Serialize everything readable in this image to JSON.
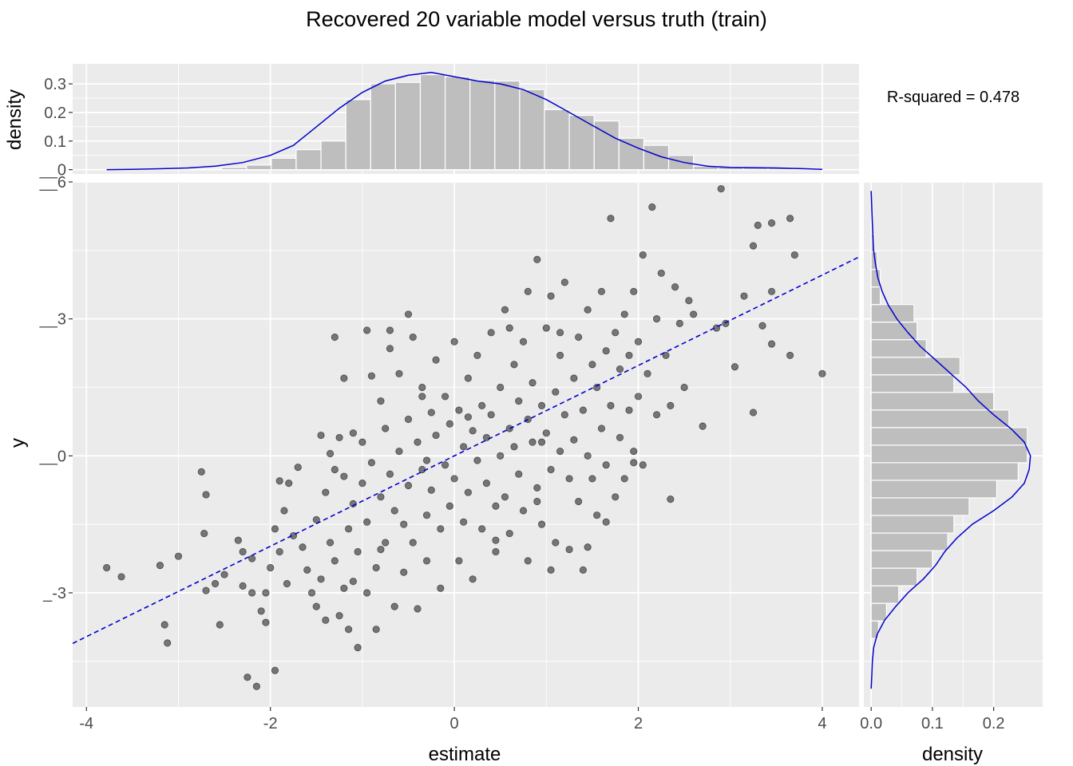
{
  "chart_data": {
    "type": "scatter",
    "title": "Recovered 20 variable model versus truth (train)",
    "annotation": "R-squared =  0.478",
    "colors": {
      "panel": "#ebebeb",
      "grid": "#ffffff",
      "point": "#000000",
      "fit_line": "#0000cc",
      "density_curve": "#0000cc",
      "hist_fill": "#bebebe",
      "hist_edge": "#ffffff"
    },
    "main": {
      "xlabel": "estimate",
      "ylabel": "y",
      "xlim": [
        -4.15,
        4.4
      ],
      "ylim": [
        -5.5,
        6.0
      ],
      "x_ticks": [
        -4,
        -2,
        0,
        2,
        4
      ],
      "x_tick_labels": [
        "-4",
        "-2",
        "0",
        "2",
        "4"
      ],
      "y_ticks": [
        -3,
        0,
        3,
        6
      ],
      "y_tick_labels": [
        "_-3",
        "__0",
        "__3",
        "__6"
      ],
      "fit_line": {
        "slope": 0.99,
        "intercept": 0.0,
        "x_range": [
          -4.15,
          4.4
        ],
        "style": "dashed"
      },
      "point_opacity": 0.5,
      "points": [
        [
          -3.78,
          -2.45
        ],
        [
          -3.62,
          -2.65
        ],
        [
          -3.2,
          -2.4
        ],
        [
          -3.15,
          -3.7
        ],
        [
          -3.12,
          -4.1
        ],
        [
          -3.0,
          -2.2
        ],
        [
          -2.75,
          -0.35
        ],
        [
          -2.72,
          -1.7
        ],
        [
          -2.7,
          -0.85
        ],
        [
          -2.7,
          -2.95
        ],
        [
          -2.6,
          -2.8
        ],
        [
          -2.55,
          -3.7
        ],
        [
          -2.5,
          -2.6
        ],
        [
          -2.35,
          -1.85
        ],
        [
          -2.3,
          -2.1
        ],
        [
          -2.3,
          -2.85
        ],
        [
          -2.25,
          -4.85
        ],
        [
          -2.2,
          -3.0
        ],
        [
          -2.15,
          -5.05
        ],
        [
          -2.2,
          -2.25
        ],
        [
          -2.05,
          -3.0
        ],
        [
          -2.1,
          -3.4
        ],
        [
          -2.05,
          -3.65
        ],
        [
          -2.0,
          -2.45
        ],
        [
          -1.95,
          -1.6
        ],
        [
          -1.95,
          -4.7
        ],
        [
          -1.9,
          -2.1
        ],
        [
          -1.9,
          -0.55
        ],
        [
          -1.85,
          -1.2
        ],
        [
          -1.82,
          -2.8
        ],
        [
          -1.8,
          -0.6
        ],
        [
          -1.75,
          -1.75
        ],
        [
          -1.7,
          -0.25
        ],
        [
          -1.65,
          -2.0
        ],
        [
          -1.6,
          -2.5
        ],
        [
          -1.55,
          -3.0
        ],
        [
          -1.5,
          -1.4
        ],
        [
          -1.5,
          -3.3
        ],
        [
          -1.45,
          0.45
        ],
        [
          -1.45,
          -2.7
        ],
        [
          -1.4,
          -0.8
        ],
        [
          -1.4,
          -3.6
        ],
        [
          -1.35,
          0.05
        ],
        [
          -1.35,
          -1.9
        ],
        [
          -1.3,
          -0.3
        ],
        [
          -1.3,
          -2.3
        ],
        [
          -1.25,
          0.4
        ],
        [
          -1.25,
          -3.5
        ],
        [
          -1.2,
          -0.45
        ],
        [
          -1.2,
          -2.9
        ],
        [
          -1.15,
          -1.6
        ],
        [
          -1.15,
          -3.8
        ],
        [
          -1.1,
          0.5
        ],
        [
          -1.1,
          -1.05
        ],
        [
          -1.05,
          -2.1
        ],
        [
          -1.05,
          -4.2
        ],
        [
          -1.0,
          0.3
        ],
        [
          -1.0,
          -0.6
        ],
        [
          -0.95,
          -1.45
        ],
        [
          -0.95,
          -3.0
        ],
        [
          -0.9,
          1.75
        ],
        [
          -0.9,
          -0.15
        ],
        [
          -0.85,
          -2.45
        ],
        [
          -0.85,
          -3.8
        ],
        [
          -0.8,
          1.2
        ],
        [
          -0.8,
          -0.9
        ],
        [
          -0.75,
          0.6
        ],
        [
          -0.75,
          -1.9
        ],
        [
          -0.7,
          2.75
        ],
        [
          -0.7,
          -0.4
        ],
        [
          -0.65,
          -1.2
        ],
        [
          -0.65,
          -3.3
        ],
        [
          -0.6,
          1.8
        ],
        [
          -0.6,
          0.1
        ],
        [
          -0.55,
          -1.5
        ],
        [
          -0.55,
          -2.55
        ],
        [
          -0.5,
          0.8
        ],
        [
          -0.5,
          -0.65
        ],
        [
          -0.45,
          2.6
        ],
        [
          -0.45,
          -1.9
        ],
        [
          -0.4,
          0.3
        ],
        [
          -0.4,
          -3.35
        ],
        [
          -0.35,
          1.5
        ],
        [
          -0.35,
          -0.3
        ],
        [
          -0.3,
          -1.3
        ],
        [
          -0.3,
          -2.3
        ],
        [
          -0.25,
          0.95
        ],
        [
          -0.25,
          -0.75
        ],
        [
          -0.2,
          2.1
        ],
        [
          -0.2,
          0.45
        ],
        [
          -0.15,
          -1.6
        ],
        [
          -0.15,
          -2.9
        ],
        [
          -0.1,
          1.3
        ],
        [
          -0.1,
          -0.2
        ],
        [
          -0.05,
          0.7
        ],
        [
          -0.05,
          -1.1
        ],
        [
          0.0,
          2.5
        ],
        [
          0.0,
          -0.5
        ],
        [
          0.05,
          1.0
        ],
        [
          0.05,
          -2.3
        ],
        [
          0.1,
          0.2
        ],
        [
          0.1,
          -1.45
        ],
        [
          0.15,
          1.7
        ],
        [
          0.15,
          -0.8
        ],
        [
          0.2,
          0.55
        ],
        [
          0.2,
          -2.7
        ],
        [
          0.25,
          2.2
        ],
        [
          0.25,
          -0.1
        ],
        [
          0.3,
          1.1
        ],
        [
          0.3,
          -1.6
        ],
        [
          0.35,
          0.4
        ],
        [
          0.35,
          -0.6
        ],
        [
          0.4,
          2.7
        ],
        [
          0.4,
          0.9
        ],
        [
          0.45,
          -1.1
        ],
        [
          0.45,
          -2.1
        ],
        [
          0.5,
          1.5
        ],
        [
          0.5,
          0.0
        ],
        [
          0.55,
          3.2
        ],
        [
          0.55,
          -0.9
        ],
        [
          0.6,
          0.6
        ],
        [
          0.6,
          -1.7
        ],
        [
          0.65,
          2.0
        ],
        [
          0.65,
          0.2
        ],
        [
          0.7,
          1.2
        ],
        [
          0.7,
          -0.4
        ],
        [
          0.75,
          2.5
        ],
        [
          0.75,
          -1.2
        ],
        [
          0.8,
          0.8
        ],
        [
          0.8,
          -2.3
        ],
        [
          0.85,
          1.6
        ],
        [
          0.85,
          0.3
        ],
        [
          0.9,
          4.3
        ],
        [
          0.9,
          -0.7
        ],
        [
          0.95,
          1.1
        ],
        [
          0.95,
          -1.5
        ],
        [
          1.0,
          2.8
        ],
        [
          1.0,
          0.5
        ],
        [
          1.05,
          3.5
        ],
        [
          1.05,
          -0.3
        ],
        [
          1.1,
          1.4
        ],
        [
          1.1,
          -1.9
        ],
        [
          1.15,
          2.2
        ],
        [
          1.15,
          0.1
        ],
        [
          1.2,
          3.8
        ],
        [
          1.2,
          0.9
        ],
        [
          1.25,
          -0.5
        ],
        [
          1.25,
          -2.05
        ],
        [
          1.3,
          1.7
        ],
        [
          1.3,
          0.35
        ],
        [
          1.35,
          2.6
        ],
        [
          1.35,
          -1.0
        ],
        [
          1.4,
          1.0
        ],
        [
          1.4,
          -2.5
        ],
        [
          1.45,
          3.2
        ],
        [
          1.45,
          0.0
        ],
        [
          1.5,
          2.0
        ],
        [
          1.5,
          -0.5
        ],
        [
          1.55,
          1.5
        ],
        [
          1.55,
          -1.3
        ],
        [
          1.6,
          3.6
        ],
        [
          1.6,
          0.6
        ],
        [
          1.65,
          2.3
        ],
        [
          1.65,
          -0.2
        ],
        [
          1.7,
          5.2
        ],
        [
          1.7,
          1.1
        ],
        [
          1.75,
          2.7
        ],
        [
          1.75,
          -0.9
        ],
        [
          1.8,
          1.9
        ],
        [
          1.8,
          0.4
        ],
        [
          1.85,
          3.1
        ],
        [
          1.85,
          -0.5
        ],
        [
          1.9,
          2.2
        ],
        [
          1.9,
          1.0
        ],
        [
          1.95,
          3.6
        ],
        [
          1.95,
          0.1
        ],
        [
          2.0,
          2.5
        ],
        [
          2.0,
          1.3
        ],
        [
          2.05,
          4.4
        ],
        [
          2.05,
          -0.2
        ],
        [
          2.1,
          1.8
        ],
        [
          2.15,
          5.45
        ],
        [
          2.2,
          3.0
        ],
        [
          2.2,
          0.9
        ],
        [
          2.25,
          4.0
        ],
        [
          2.3,
          2.2
        ],
        [
          2.35,
          1.1
        ],
        [
          2.4,
          3.7
        ],
        [
          2.45,
          2.9
        ],
        [
          2.5,
          1.5
        ],
        [
          2.55,
          3.4
        ],
        [
          2.6,
          3.1
        ],
        [
          2.7,
          0.65
        ],
        [
          2.85,
          2.8
        ],
        [
          2.9,
          5.85
        ],
        [
          2.95,
          2.9
        ],
        [
          3.05,
          1.95
        ],
        [
          3.15,
          3.5
        ],
        [
          3.25,
          4.6
        ],
        [
          3.25,
          0.95
        ],
        [
          3.3,
          5.05
        ],
        [
          3.35,
          2.85
        ],
        [
          3.45,
          5.1
        ],
        [
          3.45,
          3.6
        ],
        [
          3.45,
          2.45
        ],
        [
          3.65,
          5.2
        ],
        [
          3.65,
          2.2
        ],
        [
          3.7,
          4.4
        ],
        [
          4.0,
          1.8
        ],
        [
          2.35,
          -0.95
        ],
        [
          -1.3,
          2.6
        ],
        [
          -1.2,
          1.7
        ],
        [
          -0.95,
          2.75
        ],
        [
          -0.7,
          2.35
        ],
        [
          -0.5,
          3.1
        ],
        [
          -0.35,
          1.3
        ],
        [
          0.6,
          2.8
        ],
        [
          0.8,
          3.6
        ],
        [
          1.15,
          2.7
        ],
        [
          1.65,
          -1.45
        ],
        [
          1.45,
          -2.0
        ],
        [
          1.95,
          -0.15
        ],
        [
          0.9,
          -1.0
        ],
        [
          1.05,
          -2.5
        ],
        [
          -1.1,
          -2.75
        ],
        [
          -0.8,
          -2.05
        ],
        [
          -0.3,
          -0.1
        ],
        [
          0.15,
          0.85
        ],
        [
          0.95,
          0.3
        ],
        [
          0.45,
          -1.85
        ]
      ]
    },
    "top_marginal": {
      "ylabel": "density",
      "ylim": [
        -0.015,
        0.37
      ],
      "y_ticks": [
        0,
        0.1,
        0.2,
        0.3
      ],
      "y_tick_labels": [
        "__0",
        "0.1",
        "0.2",
        "0.3"
      ],
      "bins": [
        [
          -3.07,
          0.0
        ],
        [
          -2.8,
          0.004
        ],
        [
          -2.53,
          0.008
        ],
        [
          -2.26,
          0.016
        ],
        [
          -1.99,
          0.04
        ],
        [
          -1.72,
          0.07
        ],
        [
          -1.45,
          0.1
        ],
        [
          -1.18,
          0.245
        ],
        [
          -0.91,
          0.3
        ],
        [
          -0.64,
          0.305
        ],
        [
          -0.37,
          0.332
        ],
        [
          -0.1,
          0.325
        ],
        [
          0.17,
          0.313
        ],
        [
          0.44,
          0.31
        ],
        [
          0.71,
          0.28
        ],
        [
          0.98,
          0.21
        ],
        [
          1.25,
          0.19
        ],
        [
          1.52,
          0.17
        ],
        [
          1.79,
          0.11
        ],
        [
          2.06,
          0.085
        ],
        [
          2.33,
          0.05
        ],
        [
          2.6,
          0.012
        ],
        [
          2.87,
          0.01
        ],
        [
          3.14,
          0.008
        ],
        [
          3.41,
          0.006
        ],
        [
          3.68,
          0.004
        ]
      ],
      "bin_width": 0.27,
      "density_x": [
        -3.78,
        -3.5,
        -3.2,
        -2.9,
        -2.6,
        -2.3,
        -2.0,
        -1.75,
        -1.5,
        -1.25,
        -1.0,
        -0.75,
        -0.5,
        -0.25,
        0.0,
        0.25,
        0.5,
        0.75,
        1.0,
        1.25,
        1.5,
        1.75,
        2.0,
        2.25,
        2.5,
        2.75,
        3.0,
        3.25,
        3.5,
        3.75,
        4.0
      ],
      "density_y": [
        0.0,
        0.001,
        0.003,
        0.006,
        0.012,
        0.025,
        0.05,
        0.085,
        0.15,
        0.215,
        0.27,
        0.31,
        0.33,
        0.34,
        0.325,
        0.31,
        0.3,
        0.28,
        0.245,
        0.2,
        0.155,
        0.11,
        0.075,
        0.045,
        0.025,
        0.012,
        0.008,
        0.007,
        0.006,
        0.004,
        0.001
      ]
    },
    "right_marginal": {
      "xlabel": "density",
      "xlim": [
        -0.012,
        0.28
      ],
      "x_ticks": [
        0.0,
        0.1,
        0.2
      ],
      "x_tick_labels": [
        "0.0",
        "0.1",
        "0.2"
      ],
      "bin_width": 0.385,
      "bins": [
        [
          -4.0,
          0.012
        ],
        [
          -3.615,
          0.025
        ],
        [
          -3.23,
          0.045
        ],
        [
          -2.845,
          0.075
        ],
        [
          -2.46,
          0.1
        ],
        [
          -2.075,
          0.125
        ],
        [
          -1.69,
          0.135
        ],
        [
          -1.305,
          0.16
        ],
        [
          -0.92,
          0.205
        ],
        [
          -0.535,
          0.24
        ],
        [
          -0.15,
          0.255
        ],
        [
          0.235,
          0.255
        ],
        [
          0.62,
          0.225
        ],
        [
          1.005,
          0.2
        ],
        [
          1.39,
          0.135
        ],
        [
          1.775,
          0.145
        ],
        [
          2.16,
          0.09
        ],
        [
          2.545,
          0.075
        ],
        [
          2.93,
          0.07
        ],
        [
          3.315,
          0.015
        ],
        [
          3.7,
          0.015
        ],
        [
          4.085,
          0.01
        ],
        [
          4.47,
          0.005
        ]
      ],
      "density_y": [
        -5.1,
        -4.8,
        -4.5,
        -4.2,
        -3.9,
        -3.6,
        -3.3,
        -3.0,
        -2.7,
        -2.4,
        -2.1,
        -1.8,
        -1.5,
        -1.2,
        -0.9,
        -0.6,
        -0.3,
        0.0,
        0.3,
        0.6,
        0.9,
        1.2,
        1.5,
        1.8,
        2.1,
        2.4,
        2.7,
        3.0,
        3.3,
        3.6,
        3.9,
        4.2,
        4.5,
        4.8,
        5.1,
        5.4,
        5.8
      ],
      "density_x": [
        0.0,
        0.001,
        0.002,
        0.004,
        0.01,
        0.022,
        0.04,
        0.06,
        0.085,
        0.105,
        0.12,
        0.14,
        0.165,
        0.2,
        0.23,
        0.25,
        0.258,
        0.26,
        0.25,
        0.228,
        0.2,
        0.175,
        0.155,
        0.13,
        0.105,
        0.08,
        0.06,
        0.042,
        0.028,
        0.018,
        0.011,
        0.007,
        0.004,
        0.003,
        0.002,
        0.001,
        0.0
      ]
    }
  }
}
